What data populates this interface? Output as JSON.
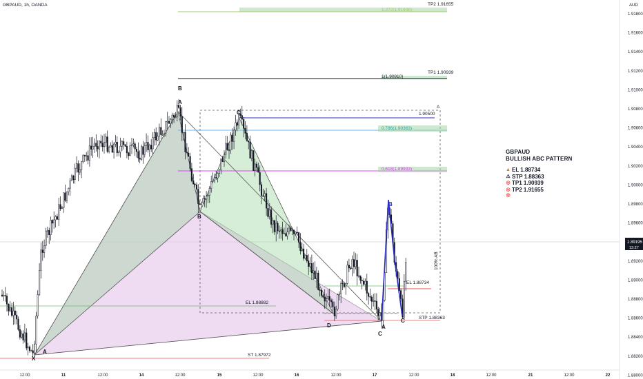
{
  "app": {
    "symbol_line": "GBPAUD, 1h, OANDA"
  },
  "chart_data": {
    "type": "candlestick",
    "symbol": "GBPAUD",
    "timeframe": "1h",
    "source": "OANDA",
    "currency": "AUD",
    "current_price": "1.89195",
    "countdown": "13:27",
    "ylim": [
      1.8793,
      1.9185
    ],
    "y_ticks": [
      "1.91800",
      "1.91600",
      "1.91400",
      "1.91200",
      "1.91000",
      "1.90800",
      "1.90600",
      "1.90400",
      "1.90200",
      "1.90000",
      "1.89800",
      "1.89600",
      "1.89400",
      "1.89200",
      "1.89000",
      "1.88800",
      "1.88600",
      "1.88400",
      "1.88200",
      "1.88000"
    ],
    "x_ticks": [
      "12:00",
      "11",
      "12:00",
      "14",
      "12:00",
      "15",
      "12:00",
      "16",
      "12:00",
      "17",
      "12:00",
      "18",
      "12:00",
      "21",
      "12:00",
      "22"
    ],
    "level_labels": {
      "tp2": "TP2 1.91655",
      "tp1": "TP1 1.90939",
      "fib_1272": "1.272(1.91606)",
      "fib_1": "1(1.90910)",
      "range_top": "1.90500",
      "fib_0786": "0.786(1.90363)",
      "fib_0618": "0.618(1.89933)",
      "el_right": "EL 1.88734",
      "el_left": "EL 1.88882",
      "stp": "STP 1.88363",
      "st_left": "ST 1.87972",
      "range_pct": "100% AB",
      "range_letter": "A"
    },
    "pattern_labels": [
      "X",
      "A",
      "B",
      "C",
      "D",
      "B",
      "A",
      "C",
      "B",
      "C",
      "A"
    ],
    "colors": {
      "bull_candle": "#131722",
      "bear_candle": "#131722",
      "pattern_purple_fill": "#e1bee7",
      "pattern_green_fill": "#a5d6a7",
      "blue_wave": "#2a2ec2",
      "tp_band": "#a5d6a7",
      "stop_red": "#ef5350",
      "fib_magenta": "#e040fb",
      "fib_blue": "#64b5f6"
    }
  },
  "info_panel": {
    "title": "GBPAUD",
    "subtitle": "BULLISH ABC PATTERN",
    "entries": [
      {
        "icon": "fire-icon",
        "glyph": "▲",
        "color": "#c77d2b",
        "text": "EL 1.88734"
      },
      {
        "icon": "warning-icon",
        "glyph": "⚠",
        "color": "#131722",
        "text": "STP  1.88363"
      },
      {
        "icon": "target-icon",
        "glyph": "◎",
        "color": "#e53935",
        "text": "TP1 1.90939"
      },
      {
        "icon": "target-icon",
        "glyph": "◎",
        "color": "#e53935",
        "text": "TP2 1.91655"
      },
      {
        "icon": "target-icon",
        "glyph": "◎",
        "color": "#e53935",
        "text": ""
      }
    ]
  }
}
